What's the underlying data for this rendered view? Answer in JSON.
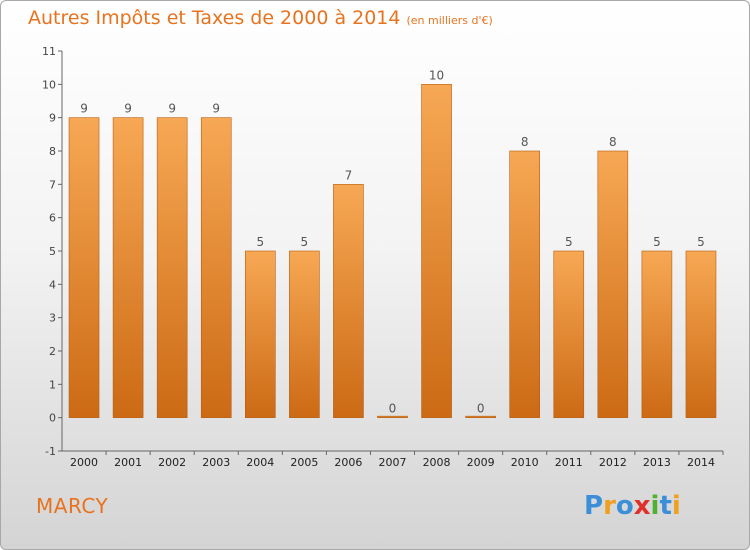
{
  "title": "Autres Impôts et Taxes de 2000 à 2014",
  "unit": "(en milliers d'€)",
  "place": "MARCY",
  "logo": {
    "letters": [
      "P",
      "r",
      "o",
      "x",
      "i",
      "t",
      "i"
    ],
    "colors": [
      "#3a8fd8",
      "#f0a020",
      "#3a8fd8",
      "#e0302a",
      "#50b030",
      "#3a8fd8",
      "#f0a020"
    ]
  },
  "chart_data": {
    "type": "bar",
    "categories": [
      "2000",
      "2001",
      "2002",
      "2003",
      "2004",
      "2005",
      "2006",
      "2007",
      "2008",
      "2009",
      "2010",
      "2011",
      "2012",
      "2013",
      "2014"
    ],
    "values": [
      9,
      9,
      9,
      9,
      5,
      5,
      7,
      0,
      10,
      0,
      8,
      5,
      8,
      5,
      5
    ],
    "ylim": [
      -1,
      11
    ],
    "yticks": [
      "-1",
      "0",
      "1",
      "2",
      "3",
      "4",
      "5",
      "6",
      "7",
      "8",
      "9",
      "10",
      "11"
    ],
    "grid": false,
    "colors": {
      "bar_top": "#f7a854",
      "bar_bottom": "#cc6a15",
      "bar_edge": "#b85c10"
    }
  }
}
